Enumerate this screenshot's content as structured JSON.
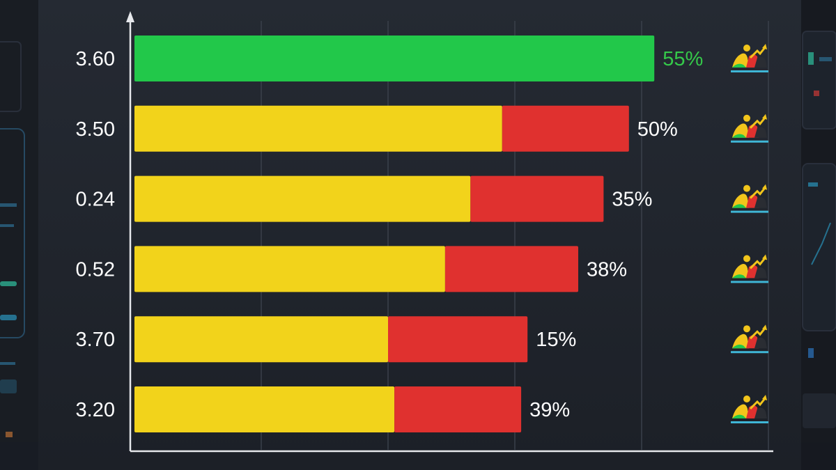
{
  "chart_data": {
    "type": "bar",
    "orientation": "horizontal",
    "stacked": true,
    "categories": [
      "3.60",
      "3.50",
      "0.24",
      "0.52",
      "3.70",
      "3.20"
    ],
    "series": [
      {
        "color": "#f2d31b",
        "values": [
          0,
          58,
          53,
          49,
          40,
          41
        ]
      },
      {
        "color": "#e0312f",
        "values": [
          0,
          20,
          21,
          21,
          22,
          20
        ]
      },
      {
        "color": "#22c84a",
        "values": [
          82,
          0,
          0,
          0,
          0,
          0
        ]
      }
    ],
    "data_labels": [
      "55%",
      "50%",
      "35%",
      "38%",
      "15%",
      "39%"
    ],
    "highlight_index": 0,
    "highlight_color": "#35c94a",
    "xlim": [
      0,
      100
    ],
    "grid": true,
    "legend": "none",
    "row_icon": "trend-icon"
  }
}
